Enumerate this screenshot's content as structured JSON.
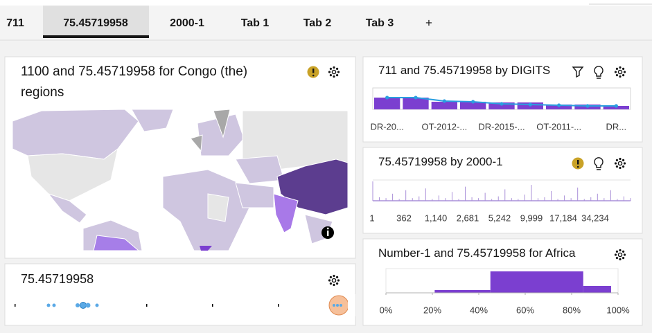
{
  "tabs": {
    "items": [
      "711",
      "75.45719958",
      "2000-1",
      "Tab 1",
      "Tab 2",
      "Tab 3",
      "+"
    ],
    "active": 1
  },
  "cards": {
    "map": {
      "title": "1100 and 75.45719958 for Congo (the) regions"
    },
    "dots": {
      "title": "75.45719958"
    }
  },
  "chart_data": [
    {
      "type": "bar_line",
      "title": "711 and 75.45719958 by DIGITS",
      "categories": [
        "DR-20...",
        null,
        "OT-2012-...",
        null,
        "DR-2015-...",
        null,
        "OT-2011-...",
        null,
        "DR..."
      ],
      "series": [
        {
          "kind": "bar",
          "color": "#7b3fd0",
          "values": [
            17,
            17,
            11,
            11,
            10,
            10,
            7,
            7,
            5
          ]
        },
        {
          "kind": "line",
          "color": "#2a9ee0",
          "values": [
            17,
            17,
            12,
            11,
            8,
            7,
            6,
            5,
            5
          ]
        }
      ]
    },
    {
      "type": "spike",
      "title": "75.45719958 by 2000-1",
      "x_labels": [
        "1",
        "362",
        "1,140",
        "2,681",
        "5,242",
        "9,999",
        "17,184",
        "34,234"
      ],
      "values": [
        22,
        4,
        3,
        8,
        2,
        12,
        3,
        5,
        14,
        2,
        6,
        3,
        10,
        2,
        16,
        4,
        3,
        9,
        2,
        5,
        13,
        3,
        2,
        7,
        18,
        3,
        4,
        11,
        2,
        6,
        3,
        15,
        2,
        4,
        8,
        3,
        12,
        2,
        5,
        3
      ],
      "color": "#a98fd8"
    },
    {
      "type": "histogram",
      "title": "Number-1 and 75.45719958 for Africa",
      "bins": [
        21,
        45,
        85,
        97
      ],
      "counts": [
        4,
        31,
        10
      ],
      "color": "#7b3fd0",
      "xlim": [
        0,
        100
      ],
      "xticks": [
        {
          "value": 0,
          "label": "0%"
        },
        {
          "value": 20,
          "label": "20%"
        },
        {
          "value": 40,
          "label": "40%"
        },
        {
          "value": 60,
          "label": "60%"
        },
        {
          "value": 80,
          "label": "80%"
        },
        {
          "value": 100,
          "label": "100%"
        }
      ]
    }
  ]
}
